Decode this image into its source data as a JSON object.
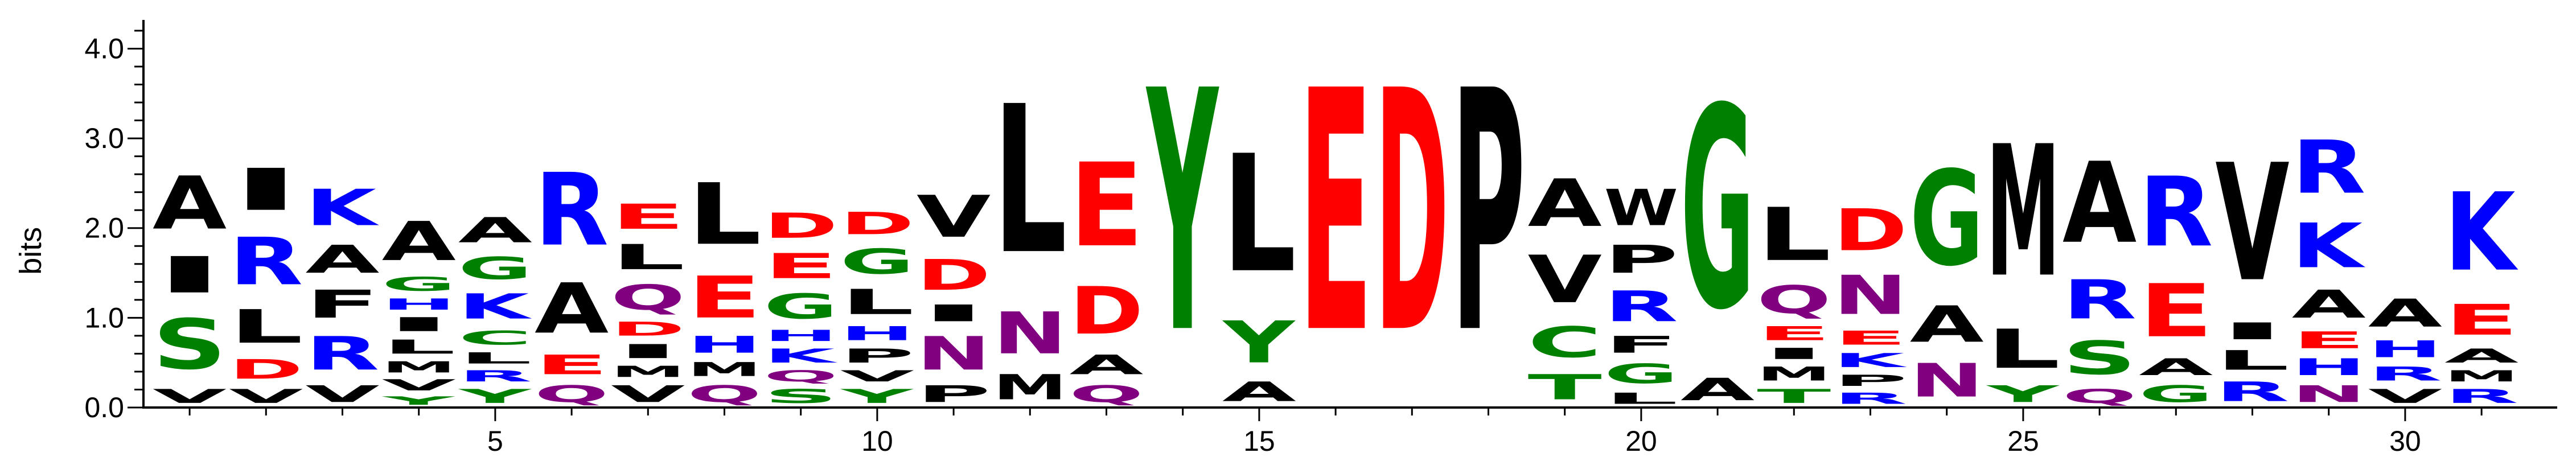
{
  "chart_data": {
    "type": "sequence-logo",
    "ylabel": "bits",
    "ylim": [
      0,
      4.32
    ],
    "y_ticks": [
      "0.0",
      "1.0",
      "2.0",
      "3.0",
      "4.0"
    ],
    "x_ticks": [
      "5",
      "10",
      "15",
      "20",
      "25",
      "30"
    ],
    "x_tick_positions": [
      5,
      10,
      15,
      20,
      25,
      30
    ],
    "positions": [
      {
        "pos": 1,
        "stack": [
          [
            "V",
            0.25
          ],
          [
            "S",
            0.9
          ],
          [
            "I",
            0.65
          ],
          [
            "A",
            0.95
          ]
        ]
      },
      {
        "pos": 2,
        "stack": [
          [
            "V",
            0.25
          ],
          [
            "D",
            0.35
          ],
          [
            "L",
            0.6
          ],
          [
            "R",
            0.85
          ],
          [
            "I",
            0.75
          ]
        ]
      },
      {
        "pos": 3,
        "stack": [
          [
            "V",
            0.3
          ],
          [
            "R",
            0.6
          ],
          [
            "F",
            0.5
          ],
          [
            "A",
            0.5
          ],
          [
            "K",
            0.65
          ]
        ]
      },
      {
        "pos": 4,
        "stack": [
          [
            "Y",
            0.15
          ],
          [
            "V",
            0.2
          ],
          [
            "M",
            0.2
          ],
          [
            "L",
            0.25
          ],
          [
            "I",
            0.25
          ],
          [
            "H",
            0.2
          ],
          [
            "G",
            0.25
          ],
          [
            "A",
            0.7
          ]
        ]
      },
      {
        "pos": 5,
        "stack": [
          [
            "Y",
            0.25
          ],
          [
            "R",
            0.2
          ],
          [
            "L",
            0.2
          ],
          [
            "C",
            0.25
          ],
          [
            "K",
            0.45
          ],
          [
            "G",
            0.4
          ],
          [
            "A",
            0.45
          ]
        ]
      },
      {
        "pos": 6,
        "stack": [
          [
            "Q",
            0.3
          ],
          [
            "E",
            0.35
          ],
          [
            "A",
            0.9
          ],
          [
            "R",
            1.3
          ]
        ]
      },
      {
        "pos": 7,
        "stack": [
          [
            "V",
            0.3
          ],
          [
            "M",
            0.2
          ],
          [
            "I",
            0.25
          ],
          [
            "D",
            0.25
          ],
          [
            "Q",
            0.45
          ],
          [
            "L",
            0.45
          ],
          [
            "E",
            0.45
          ]
        ]
      },
      {
        "pos": 8,
        "stack": [
          [
            "Q",
            0.3
          ],
          [
            "M",
            0.25
          ],
          [
            "H",
            0.3
          ],
          [
            "E",
            0.75
          ],
          [
            "L",
            1.1
          ]
        ]
      },
      {
        "pos": 9,
        "stack": [
          [
            "S",
            0.25
          ],
          [
            "Q",
            0.2
          ],
          [
            "K",
            0.25
          ],
          [
            "H",
            0.2
          ],
          [
            "G",
            0.45
          ],
          [
            "E",
            0.45
          ],
          [
            "D",
            0.45
          ]
        ]
      },
      {
        "pos": 10,
        "stack": [
          [
            "Y",
            0.25
          ],
          [
            "V",
            0.2
          ],
          [
            "P",
            0.25
          ],
          [
            "H",
            0.25
          ],
          [
            "L",
            0.45
          ],
          [
            "G",
            0.45
          ],
          [
            "D",
            0.4
          ]
        ]
      },
      {
        "pos": 11,
        "stack": [
          [
            "P",
            0.3
          ],
          [
            "N",
            0.6
          ],
          [
            "I",
            0.3
          ],
          [
            "D",
            0.55
          ],
          [
            "V",
            0.75
          ]
        ]
      },
      {
        "pos": 12,
        "stack": [
          [
            "M",
            0.45
          ],
          [
            "N",
            0.75
          ],
          [
            "L",
            2.65
          ]
        ]
      },
      {
        "pos": 13,
        "stack": [
          [
            "Q",
            0.3
          ],
          [
            "A",
            0.35
          ],
          [
            "D",
            0.85
          ],
          [
            "E",
            1.5
          ]
        ]
      },
      {
        "pos": 14,
        "stack": [
          [
            "Y",
            4.32
          ]
        ]
      },
      {
        "pos": 15,
        "stack": [
          [
            "A",
            0.35
          ],
          [
            "Y",
            0.75
          ],
          [
            "L",
            2.1
          ]
        ]
      },
      {
        "pos": 16,
        "stack": [
          [
            "E",
            4.32
          ]
        ]
      },
      {
        "pos": 17,
        "stack": [
          [
            "D",
            4.32
          ]
        ]
      },
      {
        "pos": 18,
        "stack": [
          [
            "P",
            4.32
          ]
        ]
      },
      {
        "pos": 19,
        "stack": [
          [
            "T",
            0.45
          ],
          [
            "C",
            0.55
          ],
          [
            "V",
            0.85
          ],
          [
            "A",
            0.85
          ]
        ]
      },
      {
        "pos": 20,
        "stack": [
          [
            "L",
            0.2
          ],
          [
            "G",
            0.35
          ],
          [
            "F",
            0.3
          ],
          [
            "R",
            0.55
          ],
          [
            "P",
            0.5
          ],
          [
            "W",
            0.65
          ]
        ]
      },
      {
        "pos": 21,
        "stack": [
          [
            "A",
            0.4
          ],
          [
            "G",
            3.6
          ]
        ]
      },
      {
        "pos": 22,
        "stack": [
          [
            "T",
            0.25
          ],
          [
            "M",
            0.25
          ],
          [
            "I",
            0.2
          ],
          [
            "E",
            0.25
          ],
          [
            "Q",
            0.5
          ],
          [
            "L",
            0.95
          ]
        ]
      },
      {
        "pos": 23,
        "stack": [
          [
            "R",
            0.2
          ],
          [
            "P",
            0.2
          ],
          [
            "K",
            0.25
          ],
          [
            "E",
            0.25
          ],
          [
            "N",
            0.7
          ],
          [
            "D",
            0.75
          ]
        ]
      },
      {
        "pos": 24,
        "stack": [
          [
            "N",
            0.6
          ],
          [
            "A",
            0.65
          ],
          [
            "G",
            1.7
          ]
        ]
      },
      {
        "pos": 25,
        "stack": [
          [
            "Y",
            0.3
          ],
          [
            "L",
            0.7
          ],
          [
            "M",
            2.35
          ]
        ]
      },
      {
        "pos": 26,
        "stack": [
          [
            "Q",
            0.25
          ],
          [
            "S",
            0.6
          ],
          [
            "R",
            0.7
          ],
          [
            "A",
            1.45
          ]
        ]
      },
      {
        "pos": 27,
        "stack": [
          [
            "G",
            0.3
          ],
          [
            "A",
            0.3
          ],
          [
            "E",
            0.95
          ],
          [
            "R",
            1.25
          ]
        ]
      },
      {
        "pos": 28,
        "stack": [
          [
            "R",
            0.35
          ],
          [
            "L",
            0.35
          ],
          [
            "I",
            0.3
          ],
          [
            "V",
            2.1
          ]
        ]
      },
      {
        "pos": 29,
        "stack": [
          [
            "N",
            0.3
          ],
          [
            "H",
            0.3
          ],
          [
            "E",
            0.3
          ],
          [
            "A",
            0.5
          ],
          [
            "K",
            0.8
          ],
          [
            "R",
            0.95
          ]
        ]
      },
      {
        "pos": 30,
        "stack": [
          [
            "V",
            0.25
          ],
          [
            "R",
            0.25
          ],
          [
            "H",
            0.3
          ],
          [
            "A",
            0.5
          ]
        ]
      },
      {
        "pos": 31,
        "stack": [
          [
            "R",
            0.25
          ],
          [
            "M",
            0.2
          ],
          [
            "A",
            0.25
          ],
          [
            "E",
            0.55
          ],
          [
            "K",
            1.4
          ]
        ]
      }
    ],
    "colors": {
      "acidic": "#FF0000",
      "basic": "#0000FF",
      "polar": "#008000",
      "amide": "#800080",
      "hydrophobic": "#000000"
    }
  }
}
